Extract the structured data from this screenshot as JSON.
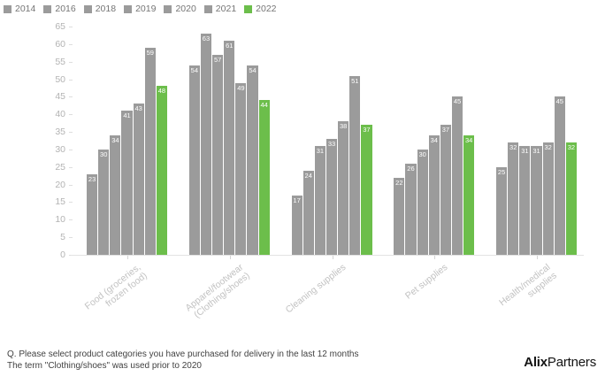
{
  "chart_data": {
    "type": "bar",
    "title": "",
    "xlabel": "",
    "ylabel": "",
    "ylim": [
      0,
      65
    ],
    "ytick_step": 5,
    "grid": false,
    "legend_position": "top-left",
    "value_labels": true,
    "categories": [
      "Food (groceries, frozen food)",
      "Apparel/footwear (Clothing/shoes)",
      "Cleaning supplies",
      "Pet supplies",
      "Health/medical supplies"
    ],
    "category_lines": [
      "Food (groceries,\nfrozen food)",
      "Apparel/footwear\n(Clothing/shoes)",
      "Cleaning supplies",
      "Pet supplies",
      "Health/medical\nsupplies"
    ],
    "series": [
      {
        "name": "2014",
        "color": "#9b9b9b",
        "values": [
          23,
          54,
          17,
          22,
          25
        ]
      },
      {
        "name": "2016",
        "color": "#9b9b9b",
        "values": [
          30,
          63,
          24,
          26,
          32
        ]
      },
      {
        "name": "2018",
        "color": "#9b9b9b",
        "values": [
          34,
          57,
          31,
          30,
          31
        ]
      },
      {
        "name": "2019",
        "color": "#9b9b9b",
        "values": [
          41,
          61,
          33,
          34,
          31
        ]
      },
      {
        "name": "2020",
        "color": "#9b9b9b",
        "values": [
          43,
          49,
          38,
          37,
          32
        ]
      },
      {
        "name": "2021",
        "color": "#9b9b9b",
        "values": [
          59,
          54,
          51,
          45,
          45
        ]
      },
      {
        "name": "2022",
        "color": "#6cbe4b",
        "values": [
          48,
          44,
          37,
          34,
          32
        ]
      }
    ]
  },
  "footer": {
    "line1": "Q. Please select product categories you have purchased for delivery in the last 12 months",
    "line2": "The term \"Clothing/shoes\" was used prior to 2020"
  },
  "logo": {
    "bold": "Alix",
    "regular": "Partners"
  },
  "colors": {
    "bar_gray": "#9b9b9b",
    "bar_green": "#6cbe4b",
    "axis_text": "#b3b3b3",
    "category_text": "#c2c2c2",
    "footnote_text": "#414141"
  }
}
